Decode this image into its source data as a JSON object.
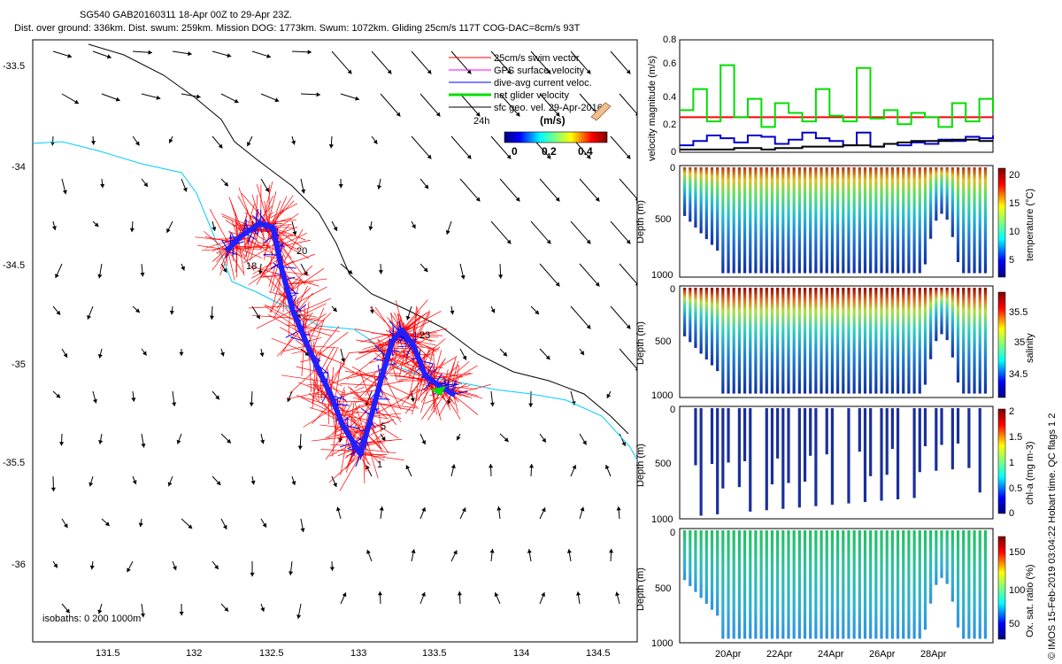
{
  "title": {
    "line1": "SG540 GAB20160311 18-Apr 00Z to 29-Apr 23Z.",
    "line2": "Dist. over ground: 336km. Dist. swum: 259km. Mission DOG: 1773km. Swum: 1072km. Gliding 25cm/s 117T COG-DAC=8cm/s 93T"
  },
  "colors": {
    "swim": "#ff0000",
    "gps": "#ff00ff",
    "dac": "#0000ff",
    "net": "#00dd00",
    "geo": "#000000",
    "isobath200": "#00ccff"
  },
  "map": {
    "legend": [
      {
        "label": "25cm/s  swim vector",
        "color": "#ff0000"
      },
      {
        "label": "GPS surface velocity",
        "color": "#ff00ff"
      },
      {
        "label": "dive-avg current veloc.",
        "color": "#0000ff"
      },
      {
        "label": "net glider velocity",
        "color": "#00dd00"
      },
      {
        "label": "sfc geo. vel. 29-Apr-2016",
        "color": "#000000"
      }
    ],
    "scale_label": "24h",
    "colorbar_title": "(m/s)",
    "colorbar_ticks": [
      "0",
      "0.2",
      "0.4"
    ],
    "isobath_note": "isobaths: 0   200   1000m",
    "day_labels": [
      "18",
      "20",
      "23",
      "5",
      "1"
    ]
  },
  "side_credit": "© IMOS 15-Feb-2019 03:04:22 Hobart time. QC flags 1  2",
  "chart_data": [
    {
      "type": "scatter",
      "name": "track map",
      "x_ticks": [
        "131.5",
        "132",
        "132.5",
        "133",
        "133.5",
        "134",
        "134.5"
      ],
      "y_ticks": [
        "-33.5",
        "-34",
        "-34.5",
        "-35",
        "-35.5",
        "-36"
      ],
      "xlim": [
        131.05,
        134.7
      ],
      "ylim": [
        -36.4,
        -33.35
      ],
      "track": [
        [
          132.22,
          -34.42
        ],
        [
          132.3,
          -34.35
        ],
        [
          132.42,
          -34.28
        ],
        [
          132.5,
          -34.3
        ],
        [
          132.55,
          -34.5
        ],
        [
          132.62,
          -34.72
        ],
        [
          132.72,
          -34.92
        ],
        [
          132.85,
          -35.15
        ],
        [
          132.92,
          -35.3
        ],
        [
          133.03,
          -35.45
        ],
        [
          133.08,
          -35.3
        ],
        [
          133.15,
          -35.08
        ],
        [
          133.22,
          -34.88
        ],
        [
          133.28,
          -34.82
        ],
        [
          133.35,
          -34.9
        ],
        [
          133.42,
          -35.05
        ],
        [
          133.5,
          -35.1
        ],
        [
          133.6,
          -35.15
        ]
      ]
    },
    {
      "type": "line",
      "name": "velocity",
      "ylabel": "velocity magnitude (m/s)",
      "yticks": [
        "0",
        "0.2",
        "0.4",
        "0.6",
        "0.8"
      ],
      "ylim": [
        0,
        0.8
      ],
      "series": [
        {
          "color": "#ff0000",
          "values": [
            0.25,
            0.25,
            0.25,
            0.25,
            0.25,
            0.25,
            0.25,
            0.25,
            0.25,
            0.25,
            0.25,
            0.25,
            0.25,
            0.25,
            0.25,
            0.25,
            0.25,
            0.25,
            0.25,
            0.25,
            0.25,
            0.25,
            0.25,
            0.25
          ]
        },
        {
          "color": "#00dd00",
          "values": [
            0.3,
            0.45,
            0.22,
            0.62,
            0.25,
            0.38,
            0.18,
            0.35,
            0.28,
            0.22,
            0.45,
            0.26,
            0.22,
            0.6,
            0.24,
            0.3,
            0.2,
            0.28,
            0.25,
            0.18,
            0.35,
            0.22,
            0.38,
            0.28
          ]
        },
        {
          "color": "#0000cc",
          "values": [
            0.05,
            0.08,
            0.12,
            0.1,
            0.07,
            0.12,
            0.11,
            0.06,
            0.09,
            0.14,
            0.1,
            0.08,
            0.05,
            0.14,
            0.04,
            0.06,
            0.05,
            0.07,
            0.06,
            0.09,
            0.08,
            0.11,
            0.1,
            0.12
          ]
        },
        {
          "color": "#000000",
          "values": [
            0.02,
            0.02,
            0.02,
            0.02,
            0.03,
            0.03,
            0.02,
            0.03,
            0.03,
            0.04,
            0.04,
            0.04,
            0.05,
            0.05,
            0.04,
            0.06,
            0.07,
            0.08,
            0.08,
            0.08,
            0.09,
            0.09,
            0.08,
            0.08
          ]
        }
      ]
    },
    {
      "type": "heatmap",
      "name": "temperature",
      "clabel": "temperature (°C)",
      "cticks": [
        "5",
        "10",
        "15",
        "20"
      ],
      "yticks": [
        "0",
        "500",
        "1000"
      ],
      "ylabel": "Depth (m)"
    },
    {
      "type": "heatmap",
      "name": "salinity",
      "clabel": "salinity",
      "cticks": [
        "34.5",
        "35",
        "35.5"
      ],
      "yticks": [
        "0",
        "500",
        "1000"
      ],
      "ylabel": "Depth (m)"
    },
    {
      "type": "heatmap",
      "name": "chlorophyll",
      "clabel": "chl-a (mg m-3)",
      "cticks": [
        "0",
        "0.5",
        "1",
        "1.5",
        "2"
      ],
      "yticks": [
        "0",
        "500",
        "1000"
      ],
      "ylabel": "Depth (m)"
    },
    {
      "type": "heatmap",
      "name": "oxygen",
      "clabel": "Ox. sat. ratio (%)",
      "cticks": [
        "50",
        "100",
        "150"
      ],
      "yticks": [
        "0",
        "500",
        "1000"
      ],
      "ylabel": "Depth (m)",
      "xticks": [
        "20Apr",
        "22Apr",
        "24Apr",
        "26Apr",
        "28Apr"
      ]
    }
  ]
}
